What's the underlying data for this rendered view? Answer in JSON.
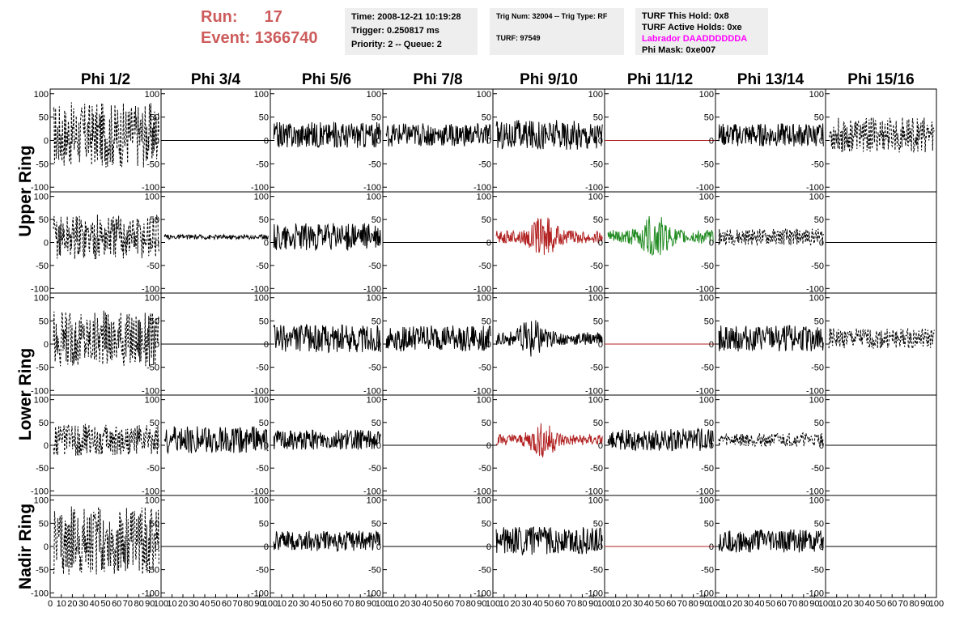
{
  "header": {
    "run_label": "Run:",
    "run_value": "17",
    "event_label": "Event:",
    "event_value": "1366740"
  },
  "info_time": {
    "time": "Time: 2008-12-21 10:19:28",
    "trigger": "Trigger: 0.250817 ms",
    "priority": "Priority: 2 -- Queue: 2"
  },
  "info_trig": {
    "trig": "Trig Num: 32004 -- Trig Type: RF",
    "turf": "TURF: 97549"
  },
  "info_turf": {
    "this_hold": "TURF This Hold: 0x8",
    "active_holds": "TURF Active Holds: 0xe",
    "labrador": "Labrador DAADDDDDDA",
    "phi_mask": "Phi Mask: 0xe007"
  },
  "colors": {
    "header_red": "#cd5c5c",
    "info_bg": "#eeeeee",
    "labrador": "#ff00ff",
    "trace_black": "#000000",
    "trace_red": "#b22222",
    "trace_green": "#228b22"
  },
  "chart_data": {
    "type": "line",
    "columns": [
      "Phi 1/2",
      "Phi 3/4",
      "Phi 5/6",
      "Phi 7/8",
      "Phi 9/10",
      "Phi 11/12",
      "Phi 13/14",
      "Phi 15/16"
    ],
    "rows": [
      "Upper Ring",
      "Lower Ring",
      "Nadir Ring"
    ],
    "xlim": [
      0,
      100
    ],
    "ylim": [
      -110,
      110
    ],
    "y_ticks": [
      "100",
      "50",
      "0",
      "-50",
      "-100"
    ],
    "x_ticks_first": [
      "0",
      "10",
      "20",
      "30",
      "40",
      "50",
      "60",
      "70",
      "80",
      "90",
      "100"
    ],
    "x_ticks_other": [
      "10",
      "20",
      "30",
      "40",
      "50",
      "60",
      "70",
      "80",
      "90",
      "100"
    ],
    "panels": [
      {
        "row": 0,
        "col": 0,
        "style": "dashed",
        "color": "black",
        "amp": 70,
        "pulse": 0
      },
      {
        "row": 0,
        "col": 1,
        "style": "flat",
        "color": "black",
        "amp": 0,
        "pulse": 0
      },
      {
        "row": 0,
        "col": 2,
        "style": "solid",
        "color": "black",
        "amp": 28,
        "pulse": 0
      },
      {
        "row": 0,
        "col": 3,
        "style": "solid",
        "color": "black",
        "amp": 25,
        "pulse": 0
      },
      {
        "row": 0,
        "col": 4,
        "style": "solid",
        "color": "black",
        "amp": 32,
        "pulse": 0
      },
      {
        "row": 0,
        "col": 5,
        "style": "flat",
        "color": "red",
        "amp": 0,
        "pulse": 0
      },
      {
        "row": 0,
        "col": 6,
        "style": "solid",
        "color": "black",
        "amp": 25,
        "pulse": 0
      },
      {
        "row": 0,
        "col": 7,
        "style": "dashed",
        "color": "black",
        "amp": 38,
        "pulse": 0
      },
      {
        "row": 1,
        "col": 0,
        "style": "dashed",
        "color": "black",
        "amp": 50,
        "pulse": 0
      },
      {
        "row": 1,
        "col": 1,
        "style": "solid",
        "color": "black",
        "amp": 5,
        "pulse": 0
      },
      {
        "row": 1,
        "col": 2,
        "style": "solid",
        "color": "black",
        "amp": 30,
        "pulse": 0
      },
      {
        "row": 1,
        "col": 3,
        "style": "flat",
        "color": "black",
        "amp": 0,
        "pulse": 0
      },
      {
        "row": 1,
        "col": 4,
        "style": "solid",
        "color": "red",
        "amp": 25,
        "pulse": 45
      },
      {
        "row": 1,
        "col": 5,
        "style": "solid",
        "color": "green",
        "amp": 28,
        "pulse": 45
      },
      {
        "row": 1,
        "col": 6,
        "style": "dashed",
        "color": "black",
        "amp": 18,
        "pulse": 0
      },
      {
        "row": 1,
        "col": 7,
        "style": "flat",
        "color": "black",
        "amp": 0,
        "pulse": 0
      },
      {
        "row": 2,
        "col": 0,
        "style": "dashed",
        "color": "black",
        "amp": 60,
        "pulse": 0
      },
      {
        "row": 2,
        "col": 1,
        "style": "flat",
        "color": "black",
        "amp": 0,
        "pulse": 0
      },
      {
        "row": 2,
        "col": 2,
        "style": "solid",
        "color": "black",
        "amp": 30,
        "pulse": 0
      },
      {
        "row": 2,
        "col": 3,
        "style": "solid",
        "color": "black",
        "amp": 28,
        "pulse": 0
      },
      {
        "row": 2,
        "col": 4,
        "style": "solid",
        "color": "black",
        "amp": 25,
        "pulse": 35
      },
      {
        "row": 2,
        "col": 5,
        "style": "flat",
        "color": "red",
        "amp": 0,
        "pulse": 0
      },
      {
        "row": 2,
        "col": 6,
        "style": "solid",
        "color": "black",
        "amp": 28,
        "pulse": 0
      },
      {
        "row": 2,
        "col": 7,
        "style": "dashed",
        "color": "black",
        "amp": 22,
        "pulse": 0
      },
      {
        "row": 3,
        "col": 0,
        "style": "dashed",
        "color": "black",
        "amp": 35,
        "pulse": 0
      },
      {
        "row": 3,
        "col": 1,
        "style": "solid",
        "color": "black",
        "amp": 30,
        "pulse": 0
      },
      {
        "row": 3,
        "col": 2,
        "style": "solid",
        "color": "black",
        "amp": 22,
        "pulse": 0
      },
      {
        "row": 3,
        "col": 3,
        "style": "flat",
        "color": "black",
        "amp": 0,
        "pulse": 0
      },
      {
        "row": 3,
        "col": 4,
        "style": "solid",
        "color": "red",
        "amp": 22,
        "pulse": 45
      },
      {
        "row": 3,
        "col": 5,
        "style": "solid",
        "color": "black",
        "amp": 25,
        "pulse": 0
      },
      {
        "row": 3,
        "col": 6,
        "style": "dashed",
        "color": "black",
        "amp": 15,
        "pulse": 0
      },
      {
        "row": 3,
        "col": 7,
        "style": "flat",
        "color": "black",
        "amp": 0,
        "pulse": 0
      },
      {
        "row": 4,
        "col": 0,
        "style": "dashed",
        "color": "black",
        "amp": 75,
        "pulse": 0
      },
      {
        "row": 4,
        "col": 1,
        "style": "flat",
        "color": "black",
        "amp": 0,
        "pulse": 0
      },
      {
        "row": 4,
        "col": 2,
        "style": "solid",
        "color": "black",
        "amp": 22,
        "pulse": 0
      },
      {
        "row": 4,
        "col": 3,
        "style": "flat",
        "color": "black",
        "amp": 0,
        "pulse": 0
      },
      {
        "row": 4,
        "col": 4,
        "style": "solid",
        "color": "black",
        "amp": 30,
        "pulse": 0
      },
      {
        "row": 4,
        "col": 5,
        "style": "flat",
        "color": "red",
        "amp": 0,
        "pulse": 0
      },
      {
        "row": 4,
        "col": 6,
        "style": "solid",
        "color": "black",
        "amp": 25,
        "pulse": 0
      },
      {
        "row": 4,
        "col": 7,
        "style": "flat",
        "color": "black",
        "amp": 0,
        "pulse": 0
      }
    ]
  }
}
